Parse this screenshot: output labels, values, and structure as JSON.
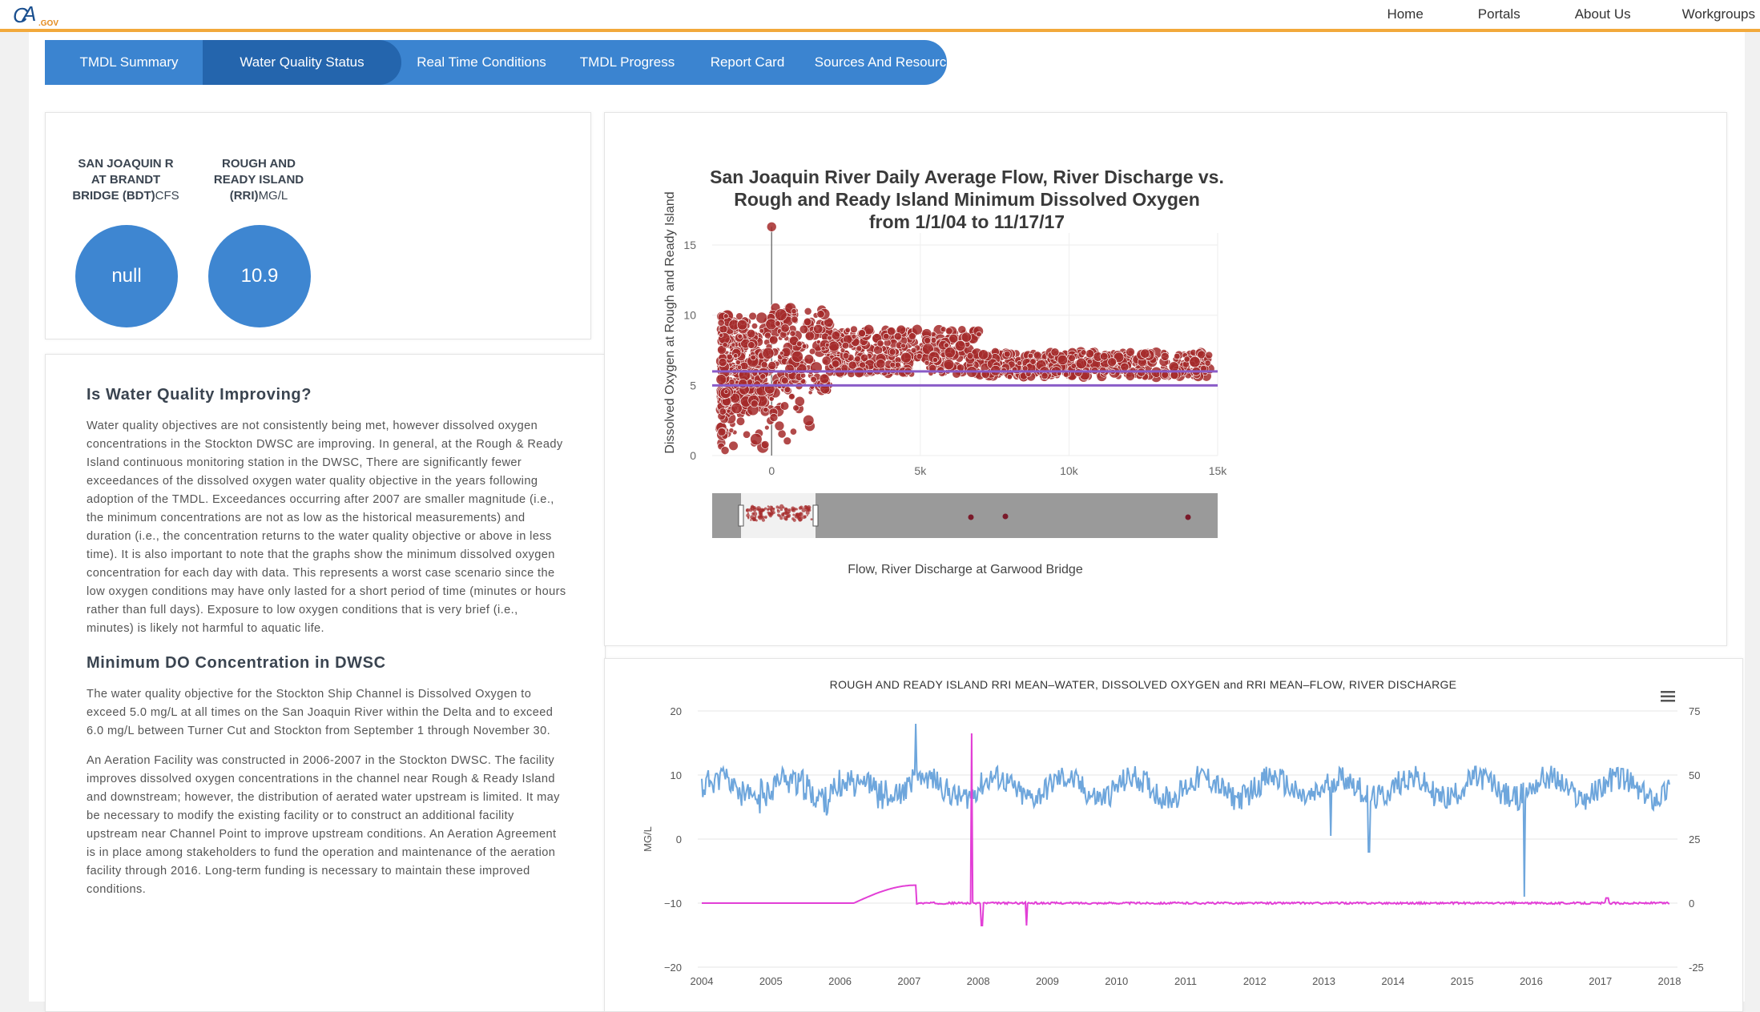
{
  "header": {
    "logo_text": "CA.GOV",
    "nav": [
      "Home",
      "Portals",
      "About Us",
      "Workgroups"
    ]
  },
  "tabs": [
    {
      "label": "TMDL Summary",
      "active": false
    },
    {
      "label": "Water Quality Status",
      "active": true
    },
    {
      "label": "Real Time Conditions",
      "active": false
    },
    {
      "label": "TMDL Progress",
      "active": false
    },
    {
      "label": "Report Card",
      "active": false
    },
    {
      "label": "Sources And Resources",
      "active": false
    }
  ],
  "stations": [
    {
      "name": "SAN JOAQUIN R AT BRANDT BRIDGE (BDT)",
      "unit": "CFS",
      "value": "null"
    },
    {
      "name": "ROUGH AND READY ISLAND (RRI)",
      "unit": "MG/L",
      "value": "10.9"
    }
  ],
  "article": {
    "heading1": "Is Water Quality Improving?",
    "para1": "Water quality objectives are not consistently being met, however dissolved oxygen concentrations in the Stockton DWSC are improving. In general, at the Rough & Ready Island continuous monitoring station in the DWSC, There are significantly fewer exceedances of the dissolved oxygen water quality objective in the years following adoption of the TMDL. Exceedances occurring after 2007 are smaller magnitude (i.e., the minimum concentrations are not as low as the historical measurements) and duration (i.e., the concentration returns to the water quality objective or above in less time). It is also important to note that the graphs show the minimum dissolved oxygen concentration for each day with data. This represents a worst case scenario since the low oxygen conditions may have only lasted for a short period of time (minutes or hours rather than full days). Exposure to low oxygen conditions that is very brief (i.e., minutes) is likely not harmful to aquatic life.",
    "heading2": "Minimum DO Concentration in DWSC",
    "para2": "The water quality objective for the Stockton Ship Channel is Dissolved Oxygen to exceed 5.0 mg/L at all times on the San Joaquin River within the Delta and to exceed 6.0 mg/L between Turner Cut and Stockton from September 1 through November 30.",
    "para3": "An Aeration Facility was constructed in 2006-2007 in the Stockton DWSC. The facility improves dissolved oxygen concentrations in the channel near Rough & Ready Island and downstream; however, the distribution of aerated water upstream is limited. It may be necessary to modify the existing facility or to construct an additional facility upstream near Channel Point to improve upstream conditions. An Aeration Agreement is in place among stakeholders to fund the operation and maintenance of the aeration facility through 2016. Long-term funding is necessary to maintain these improved conditions."
  },
  "chart_data": [
    {
      "type": "scatter",
      "title": "San Joaquin River Daily Average Flow, River Discharge vs. Rough and Ready Island Minimum Dissolved Oxygen from 1/1/04 to 11/17/17",
      "xlabel": "Flow, River Discharge at Garwood Bridge",
      "ylabel": "Dissolved Oxygen at Rough and Ready Island",
      "xlim": [
        -2000,
        15000
      ],
      "ylim": [
        0,
        17
      ],
      "x_ticks": [
        "0",
        "5k",
        "10k",
        "15k"
      ],
      "y_ticks": [
        "0",
        "5",
        "10",
        "15"
      ],
      "reference_lines": [
        5,
        6
      ],
      "range_slider": true,
      "colors": {
        "points": "#a52a2a",
        "lines": "#8a5cc8"
      }
    },
    {
      "type": "line",
      "title": "ROUGH AND READY ISLAND RRI MEAN–WATER, DISSOLVED OXYGEN and RRI MEAN–FLOW, RIVER DISCHARGE",
      "ylabel": "MG/L",
      "x_ticks": [
        "2004",
        "2005",
        "2006",
        "2007",
        "2008",
        "2009",
        "2010",
        "2011",
        "2012",
        "2013",
        "2014",
        "2015",
        "2016",
        "2017",
        "2018"
      ],
      "y_ticks": [
        "20",
        "10",
        "0",
        "−10",
        "−20"
      ],
      "y2_ticks": [
        "75",
        "50",
        "25",
        "0",
        "-25"
      ],
      "series": [
        {
          "name": "RRI MEAN–WATER, DISSOLVED OXYGEN",
          "color": "#6ea6dc",
          "baseline": 8
        },
        {
          "name": "RRI MEAN–FLOW, RIVER DISCHARGE",
          "color": "#e23fd6",
          "baseline": -10
        }
      ]
    }
  ]
}
